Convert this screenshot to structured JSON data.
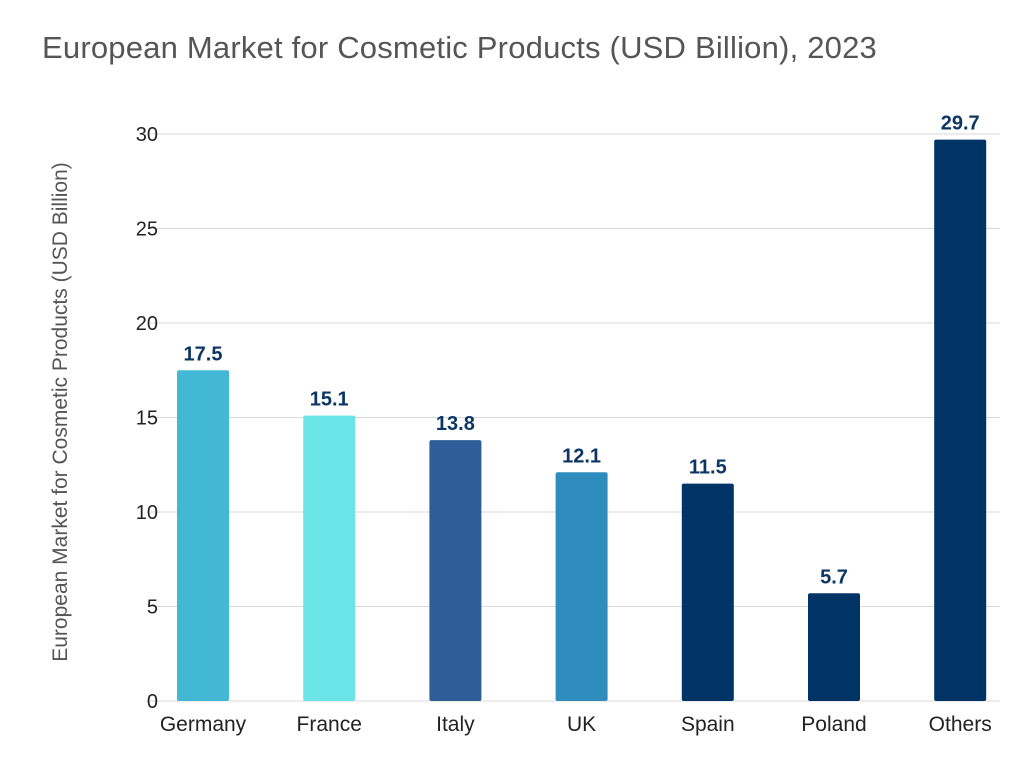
{
  "chart_data": {
    "type": "bar",
    "title": "European Market for Cosmetic Products (USD Billion), 2023",
    "xlabel": "",
    "ylabel": "European Market for Cosmetic Products (USD Billion)",
    "categories": [
      "Germany",
      "France",
      "Italy",
      "UK",
      "Spain",
      "Poland",
      "Others"
    ],
    "values": [
      17.5,
      15.1,
      13.8,
      12.1,
      11.5,
      5.7,
      29.7
    ],
    "colors": [
      "#42b8d5",
      "#6ae4e6",
      "#2e5d97",
      "#2f8dbd",
      "#003366",
      "#003366",
      "#003366"
    ],
    "ylim": [
      0,
      30
    ],
    "yticks": [
      0,
      5,
      10,
      15,
      20,
      25,
      30
    ],
    "grid": true,
    "data_label_color": "#0c3563"
  }
}
